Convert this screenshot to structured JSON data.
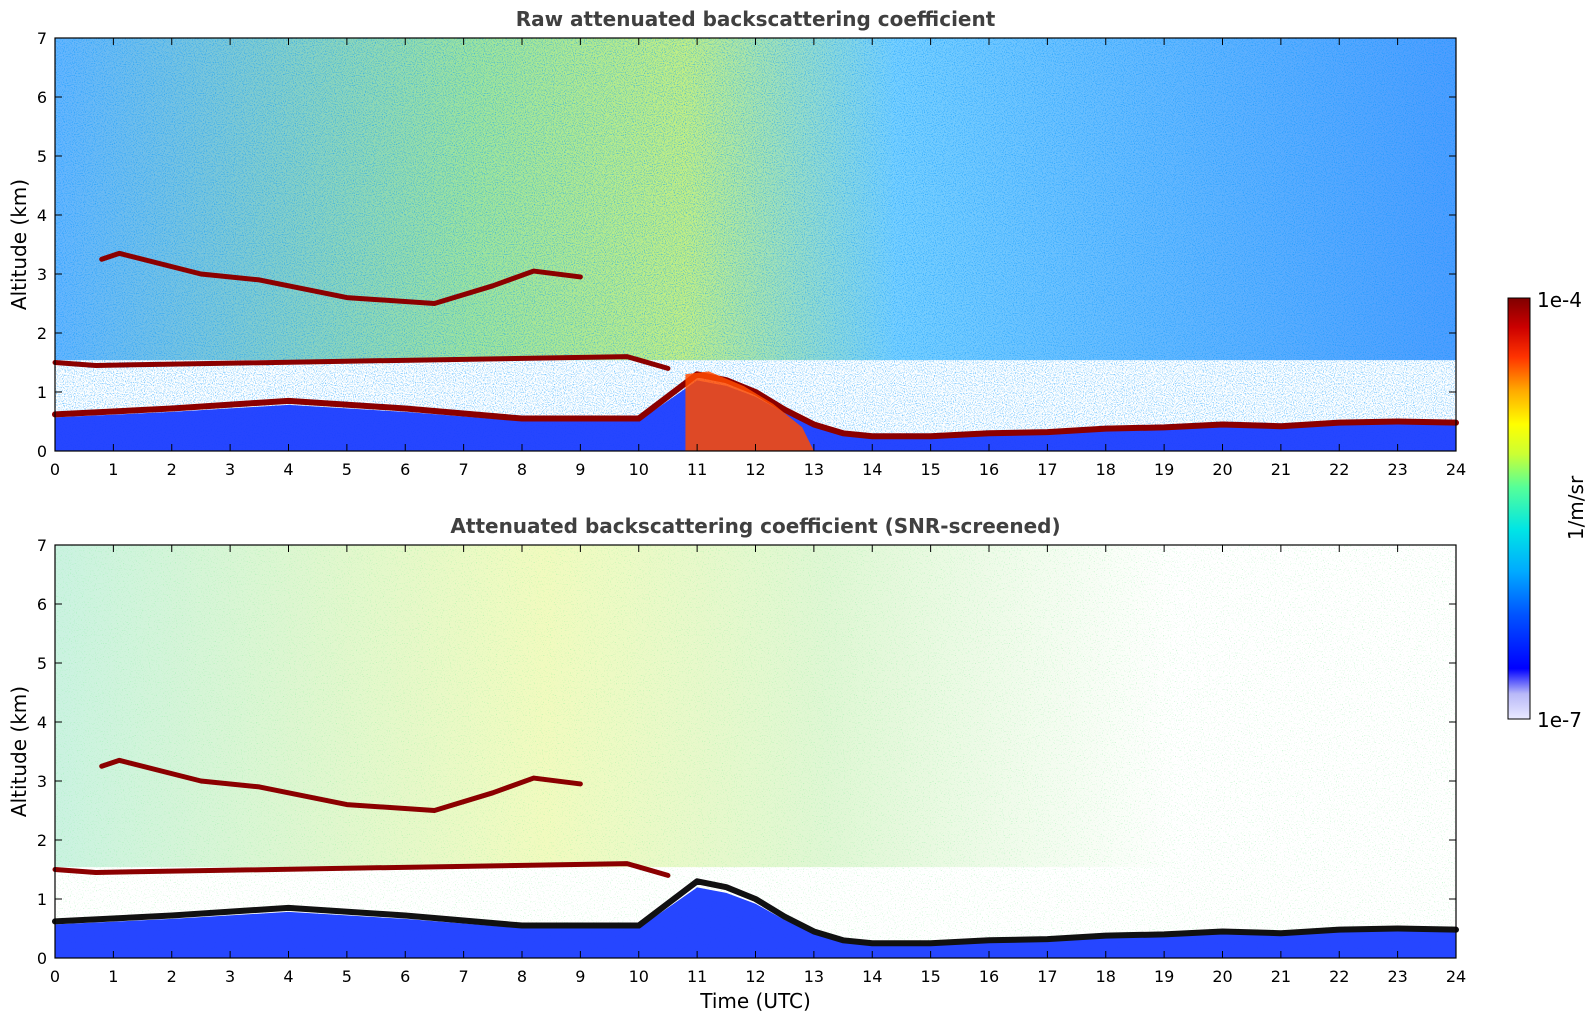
{
  "chart_data": [
    {
      "type": "heatmap",
      "title": "Raw attenuated backscattering coefficient",
      "xlabel": "",
      "ylabel": "Altitude (km)",
      "xlim": [
        0,
        24
      ],
      "ylim": [
        0,
        7
      ],
      "x_ticks": [
        "0",
        "1",
        "2",
        "3",
        "4",
        "5",
        "6",
        "7",
        "8",
        "9",
        "10",
        "11",
        "12",
        "13",
        "14",
        "15",
        "16",
        "17",
        "18",
        "19",
        "20",
        "21",
        "22",
        "23",
        "24"
      ],
      "y_ticks": [
        "0",
        "1",
        "2",
        "3",
        "4",
        "5",
        "6",
        "7"
      ],
      "features": [
        {
          "kind": "boundary_layer_top",
          "points": [
            [
              0,
              0.62
            ],
            [
              2,
              0.72
            ],
            [
              4,
              0.85
            ],
            [
              6,
              0.72
            ],
            [
              8,
              0.55
            ],
            [
              10,
              0.55
            ],
            [
              11,
              1.3
            ],
            [
              11.5,
              1.2
            ],
            [
              12,
              1.0
            ],
            [
              12.5,
              0.7
            ],
            [
              13,
              0.45
            ],
            [
              13.5,
              0.3
            ],
            [
              14,
              0.25
            ],
            [
              15,
              0.25
            ],
            [
              16,
              0.3
            ],
            [
              17,
              0.32
            ],
            [
              18,
              0.38
            ],
            [
              19,
              0.4
            ],
            [
              20,
              0.45
            ],
            [
              21,
              0.42
            ],
            [
              22,
              0.48
            ],
            [
              23,
              0.5
            ],
            [
              24,
              0.48
            ]
          ],
          "intensity": "1e-4"
        },
        {
          "kind": "cloud_layer",
          "points": [
            [
              0.8,
              3.25
            ],
            [
              1.1,
              3.35
            ],
            [
              2.5,
              3.0
            ],
            [
              3.5,
              2.9
            ],
            [
              5,
              2.6
            ],
            [
              6.5,
              2.5
            ],
            [
              7.5,
              2.8
            ],
            [
              8.2,
              3.05
            ],
            [
              9.0,
              2.95
            ]
          ],
          "intensity": "1e-4"
        },
        {
          "kind": "cloud_layer",
          "points": [
            [
              0,
              1.5
            ],
            [
              0.7,
              1.45
            ],
            [
              9.8,
              1.6
            ],
            [
              10.5,
              1.4
            ]
          ],
          "intensity": "1e-4"
        },
        {
          "kind": "dense_aerosol",
          "points": [
            [
              10.8,
              0.2
            ],
            [
              11.5,
              0.3
            ],
            [
              12.2,
              0.3
            ],
            [
              13,
              0.1
            ]
          ],
          "intensity": "5e-5"
        }
      ]
    },
    {
      "type": "heatmap",
      "title": "Attenuated backscattering coefficient (SNR-screened)",
      "xlabel": "Time (UTC)",
      "ylabel": "Altitude (km)",
      "xlim": [
        0,
        24
      ],
      "ylim": [
        0,
        7
      ],
      "x_ticks": [
        "0",
        "1",
        "2",
        "3",
        "4",
        "5",
        "6",
        "7",
        "8",
        "9",
        "10",
        "11",
        "12",
        "13",
        "14",
        "15",
        "16",
        "17",
        "18",
        "19",
        "20",
        "21",
        "22",
        "23",
        "24"
      ],
      "y_ticks": [
        "0",
        "1",
        "2",
        "3",
        "4",
        "5",
        "6",
        "7"
      ],
      "features": [
        {
          "kind": "boundary_layer_top",
          "points": [
            [
              0,
              0.62
            ],
            [
              2,
              0.72
            ],
            [
              4,
              0.85
            ],
            [
              6,
              0.72
            ],
            [
              8,
              0.55
            ],
            [
              10,
              0.55
            ],
            [
              11,
              1.3
            ],
            [
              11.5,
              1.2
            ],
            [
              12,
              1.0
            ],
            [
              12.5,
              0.7
            ],
            [
              13,
              0.45
            ],
            [
              13.5,
              0.3
            ],
            [
              14,
              0.25
            ],
            [
              15,
              0.25
            ],
            [
              16,
              0.3
            ],
            [
              17,
              0.32
            ],
            [
              18,
              0.38
            ],
            [
              19,
              0.4
            ],
            [
              20,
              0.45
            ],
            [
              21,
              0.42
            ],
            [
              22,
              0.48
            ],
            [
              23,
              0.5
            ],
            [
              24,
              0.48
            ]
          ],
          "intensity": "1e-4"
        },
        {
          "kind": "cloud_layer",
          "points": [
            [
              0.8,
              3.25
            ],
            [
              1.1,
              3.35
            ],
            [
              2.5,
              3.0
            ],
            [
              3.5,
              2.9
            ],
            [
              5,
              2.6
            ],
            [
              6.5,
              2.5
            ],
            [
              7.5,
              2.8
            ],
            [
              8.2,
              3.05
            ],
            [
              9.0,
              2.95
            ]
          ],
          "intensity": "1e-4"
        },
        {
          "kind": "cloud_layer",
          "points": [
            [
              0,
              1.5
            ],
            [
              0.7,
              1.45
            ],
            [
              9.8,
              1.6
            ],
            [
              10.5,
              1.4
            ]
          ],
          "intensity": "1e-4"
        }
      ]
    }
  ],
  "colorbar": {
    "label": "1/m/sr",
    "max_label": "1e-4",
    "min_label": "1e-7",
    "colors": [
      "#eaeaff",
      "#b8b8f8",
      "#0000ff",
      "#0055ff",
      "#00aaff",
      "#00e5e5",
      "#55ff99",
      "#ccff33",
      "#ffff00",
      "#ffaa00",
      "#ff3300",
      "#cc0000",
      "#800000"
    ]
  }
}
